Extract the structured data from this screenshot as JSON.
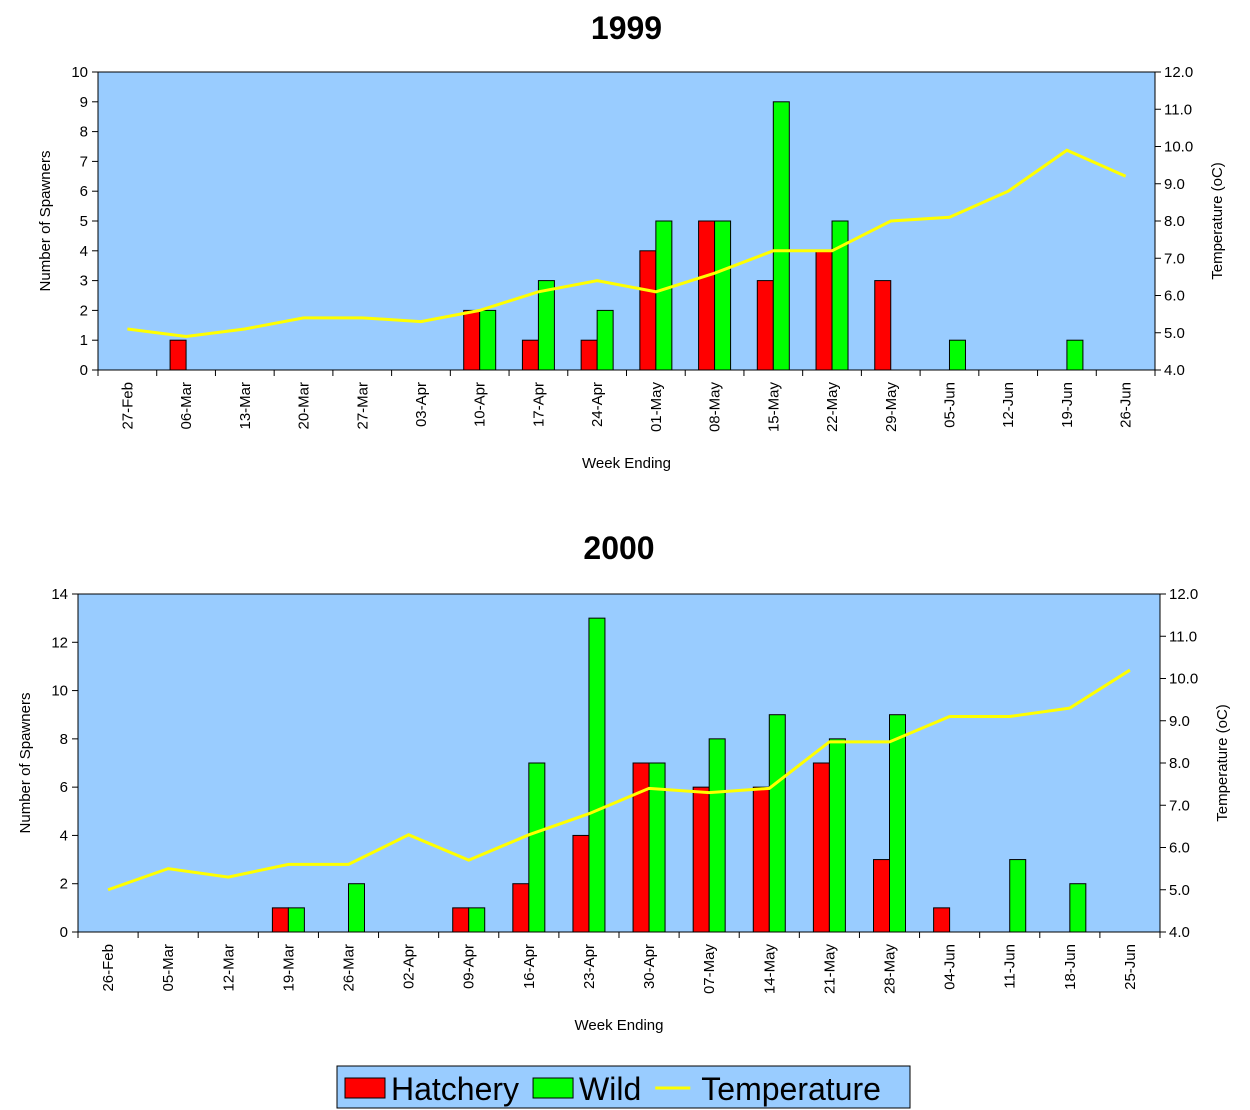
{
  "chart_data": [
    {
      "type": "bar",
      "title": "1999",
      "x_label": "Week Ending",
      "y_label": "Number of Spawners",
      "y2_label": "Temperature (oC)",
      "categories": [
        "27-Feb",
        "06-Mar",
        "13-Mar",
        "20-Mar",
        "27-Mar",
        "03-Apr",
        "10-Apr",
        "17-Apr",
        "24-Apr",
        "01-May",
        "08-May",
        "15-May",
        "22-May",
        "29-May",
        "05-Jun",
        "12-Jun",
        "19-Jun",
        "26-Jun"
      ],
      "series": [
        {
          "name": "Hatchery",
          "color": "#ff0000",
          "values": [
            0,
            1,
            0,
            0,
            0,
            0,
            2,
            1,
            1,
            4,
            5,
            3,
            4,
            3,
            0,
            0,
            0,
            0
          ]
        },
        {
          "name": "Wild",
          "color": "#00ff00",
          "values": [
            0,
            0,
            0,
            0,
            0,
            0,
            2,
            3,
            2,
            5,
            5,
            9,
            5,
            0,
            1,
            0,
            1,
            0
          ]
        },
        {
          "name": "Temperature",
          "color": "#ffff00",
          "axis": "y2",
          "values": [
            5.1,
            4.9,
            5.1,
            5.4,
            5.4,
            5.3,
            5.6,
            6.1,
            6.4,
            6.1,
            6.6,
            7.2,
            7.2,
            8.0,
            8.1,
            8.8,
            9.9,
            9.2
          ]
        }
      ],
      "ylim": [
        0,
        10
      ],
      "yticks": [
        0,
        1,
        2,
        3,
        4,
        5,
        6,
        7,
        8,
        9,
        10
      ],
      "y2lim": [
        4,
        12
      ],
      "y2ticks": [
        {
          "value": 4,
          "label": "4.0"
        },
        {
          "value": 5,
          "label": "5.0"
        },
        {
          "value": 6,
          "label": "6.0"
        },
        {
          "value": 7,
          "label": "7.0"
        },
        {
          "value": 8,
          "label": "8.0"
        },
        {
          "value": 9,
          "label": "9.0"
        },
        {
          "value": 10,
          "label": "10.0"
        },
        {
          "value": 11,
          "label": "11.0"
        },
        {
          "value": 12,
          "label": "12.0"
        }
      ],
      "background": "#99ccff"
    },
    {
      "type": "bar",
      "title": "2000",
      "x_label": "Week Ending",
      "y_label": "Number of Spawners",
      "y2_label": "Temperature (oC)",
      "categories": [
        "26-Feb",
        "05-Mar",
        "12-Mar",
        "19-Mar",
        "26-Mar",
        "02-Apr",
        "09-Apr",
        "16-Apr",
        "23-Apr",
        "30-Apr",
        "07-May",
        "14-May",
        "21-May",
        "28-May",
        "04-Jun",
        "11-Jun",
        "18-Jun",
        "25-Jun"
      ],
      "series": [
        {
          "color": "#ff0000",
          "values": [
            0,
            0,
            0,
            1,
            0,
            0,
            1,
            2,
            4,
            7,
            6,
            6,
            7,
            3,
            1,
            0,
            0,
            0
          ]
        },
        {
          "color": "#00ff00",
          "values": [
            0,
            0,
            0,
            1,
            2,
            0,
            1,
            7,
            13,
            7,
            8,
            9,
            8,
            9,
            0,
            3,
            2,
            0
          ]
        },
        {
          "color": "#ffff00",
          "axis": "y2",
          "values": [
            5.0,
            5.5,
            5.3,
            5.6,
            5.6,
            6.3,
            5.7,
            6.3,
            6.8,
            7.4,
            7.3,
            7.4,
            8.5,
            8.5,
            9.1,
            9.1,
            9.3,
            10.2
          ]
        }
      ],
      "ylim": [
        0,
        14
      ],
      "yticks": [
        0,
        2,
        4,
        6,
        8,
        10,
        12,
        14
      ],
      "y2lim": [
        4,
        12
      ],
      "y2ticks": [
        {
          "value": 4,
          "label": "4.0"
        },
        {
          "value": 5,
          "label": "5.0"
        },
        {
          "value": 6,
          "label": "6.0"
        },
        {
          "value": 7,
          "label": "7.0"
        },
        {
          "value": 8,
          "label": "8.0"
        },
        {
          "value": 9,
          "label": "9.0"
        },
        {
          "value": 10,
          "label": "10.0"
        },
        {
          "value": 11,
          "label": "11.0"
        },
        {
          "value": 12,
          "label": "12.0"
        }
      ],
      "background": "#99ccff"
    }
  ]
}
